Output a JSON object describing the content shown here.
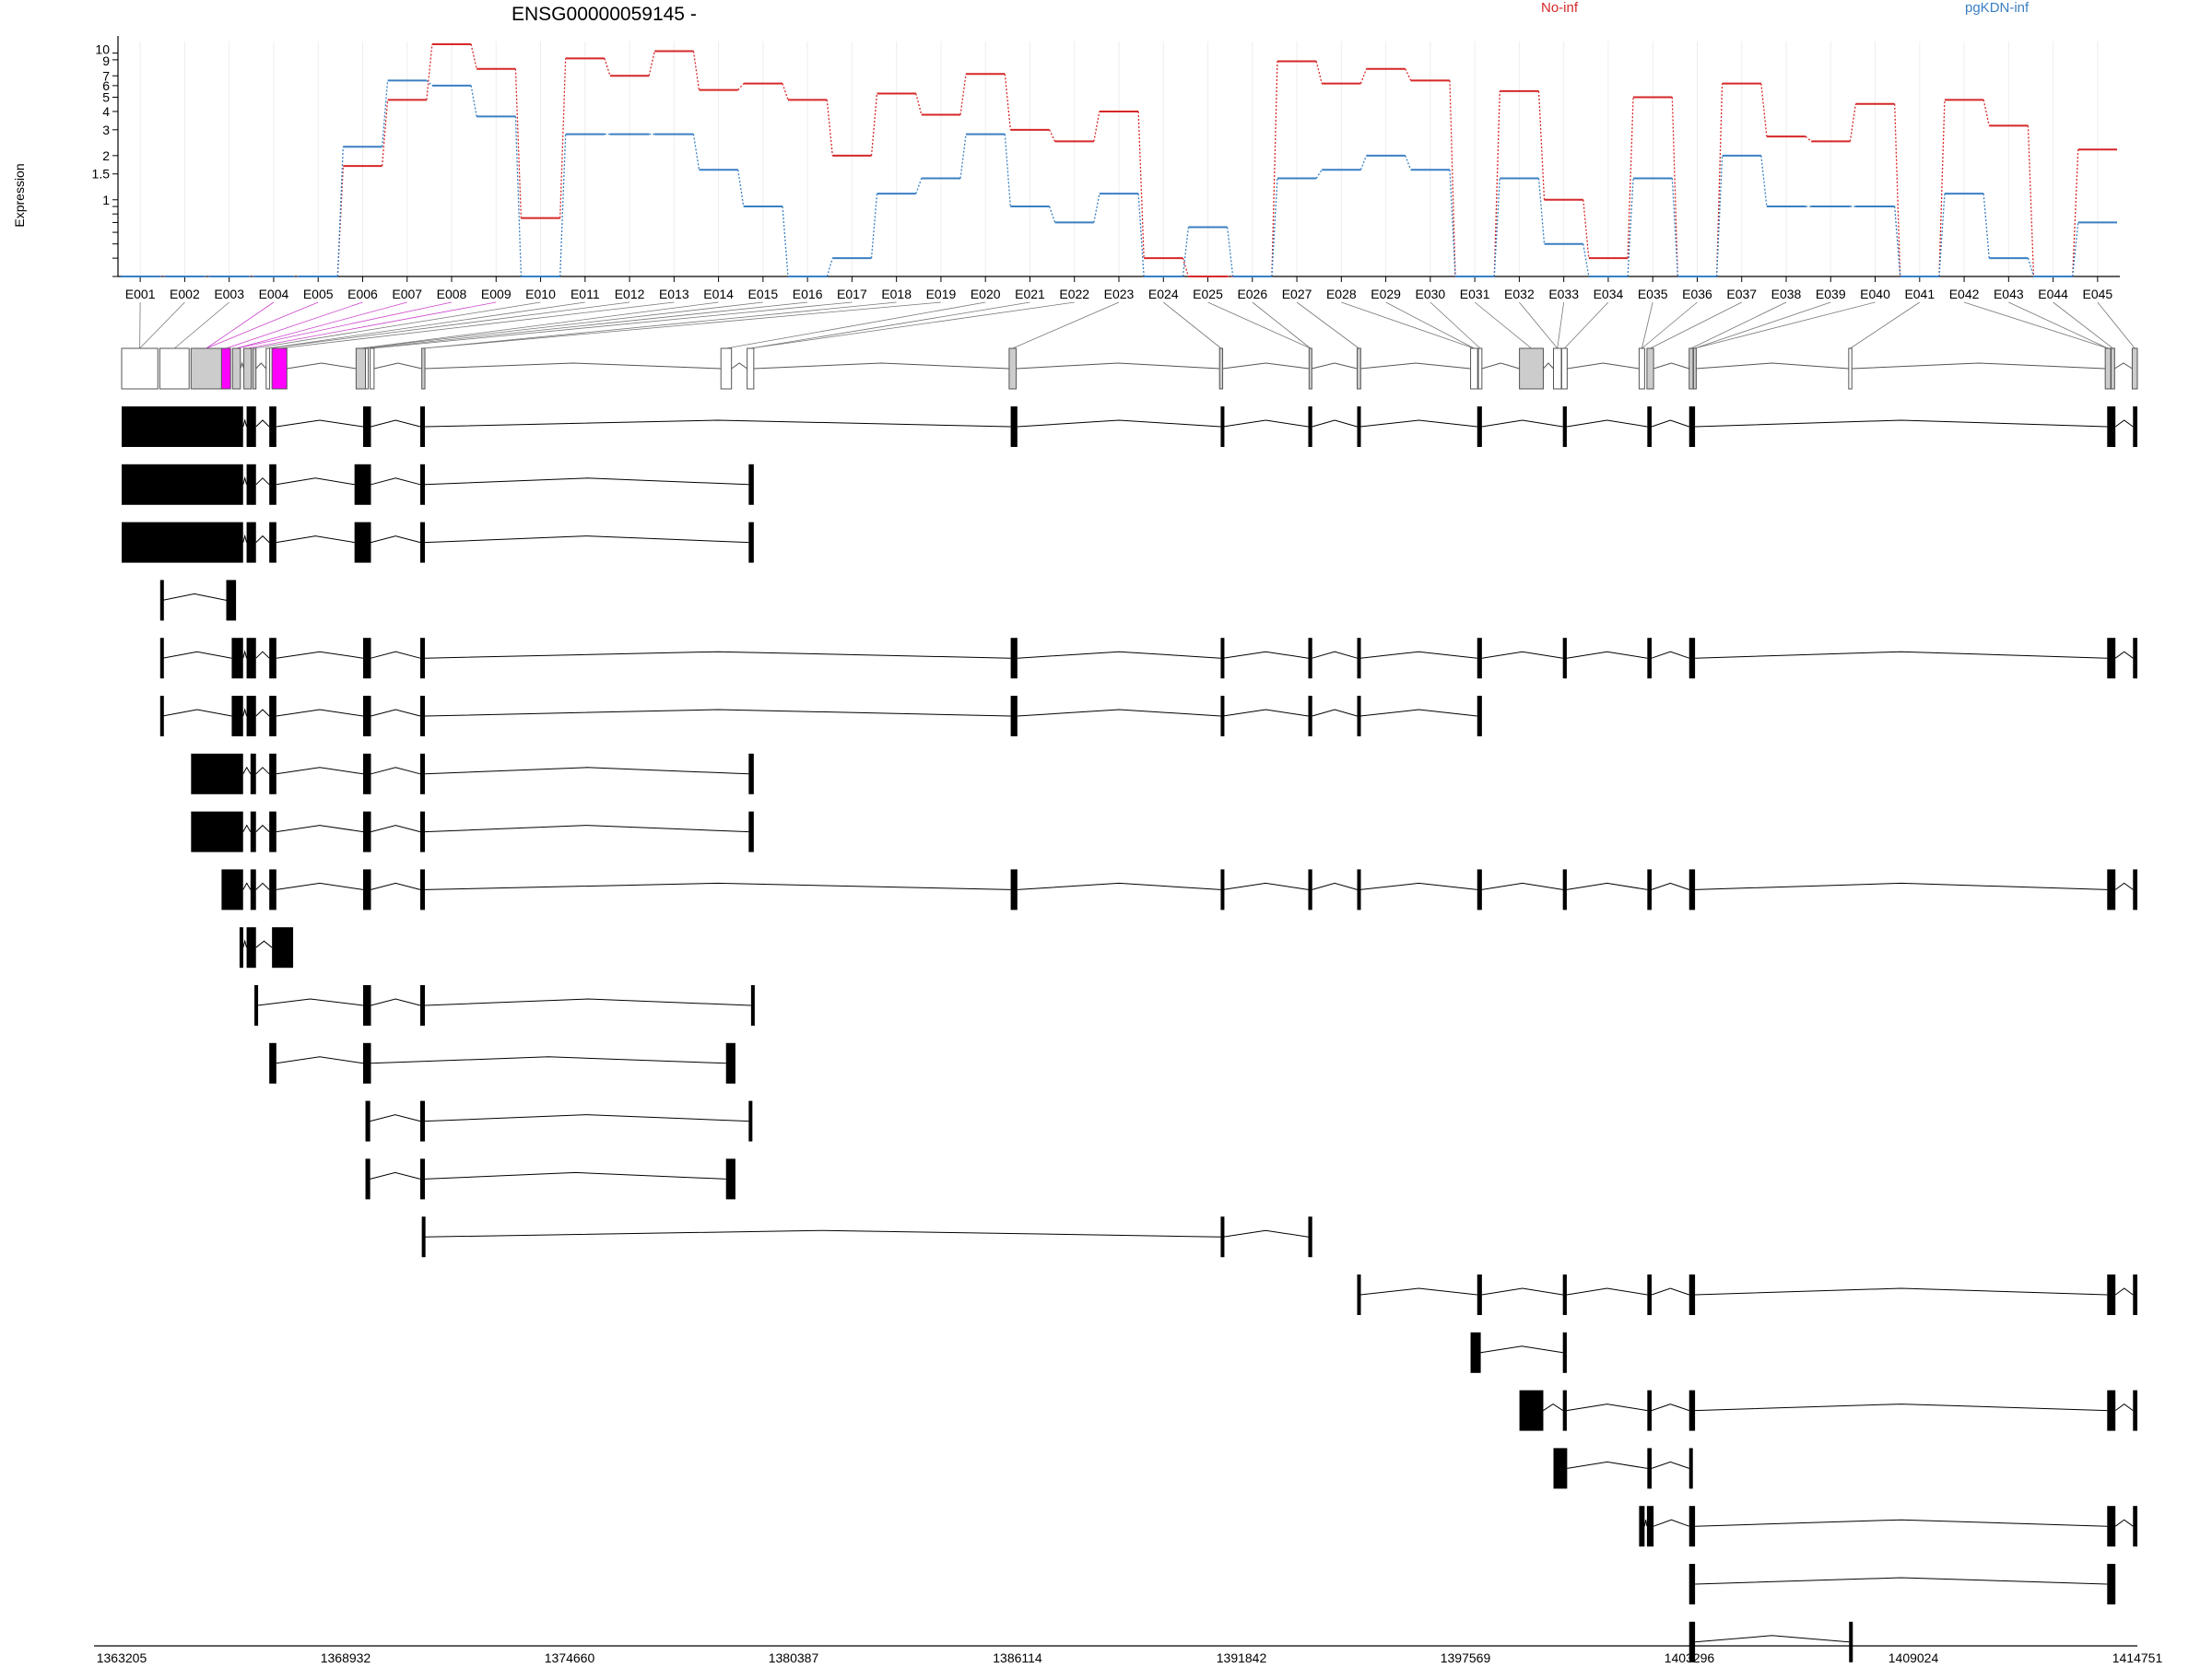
{
  "chart_data": {
    "type": "line",
    "title": "ENSG00000059145 -",
    "ylabel": "Expression",
    "xlabel": "",
    "y_scale": "log",
    "y_ticks": [
      "10",
      "9",
      "7",
      "6",
      "5",
      "4",
      "3",
      "2",
      "1.5",
      "1"
    ],
    "ylim": [
      0.3,
      12
    ],
    "categories": [
      "E001",
      "E002",
      "E003",
      "E004",
      "E005",
      "E006",
      "E007",
      "E008",
      "E009",
      "E010",
      "E011",
      "E012",
      "E013",
      "E014",
      "E015",
      "E016",
      "E017",
      "E018",
      "E019",
      "E020",
      "E021",
      "E022",
      "E023",
      "E024",
      "E025",
      "E026",
      "E027",
      "E028",
      "E029",
      "E030",
      "E031",
      "E032",
      "E033",
      "E034",
      "E035",
      "E036",
      "E037",
      "E038",
      "E039",
      "E040",
      "E041",
      "E042",
      "E043",
      "E044",
      "E045"
    ],
    "series": [
      {
        "name": "No-inf",
        "color": "#d62728",
        "values": [
          0.3,
          0.3,
          0.3,
          0.3,
          0.3,
          1.7,
          4.8,
          11.5,
          7.8,
          0.75,
          9.2,
          7.0,
          10.3,
          5.6,
          6.2,
          4.8,
          2.0,
          5.3,
          3.8,
          7.2,
          3.0,
          2.5,
          4.0,
          0.4,
          0.3,
          0.3,
          8.8,
          6.2,
          7.8,
          6.5,
          0.3,
          5.5,
          1.0,
          0.4,
          5.0,
          0.3,
          6.2,
          2.7,
          2.5,
          4.5,
          0.3,
          4.8,
          3.2,
          0.3,
          2.2
        ]
      },
      {
        "name": "pgKDN-inf",
        "color": "#3a7fc2",
        "values": [
          0.3,
          0.3,
          0.3,
          0.3,
          0.3,
          2.3,
          6.5,
          6.0,
          3.7,
          0.3,
          2.8,
          2.8,
          2.8,
          1.6,
          0.9,
          0.3,
          0.4,
          1.1,
          1.4,
          2.8,
          0.9,
          0.7,
          1.1,
          0.3,
          0.65,
          0.3,
          1.4,
          1.6,
          2.0,
          1.6,
          0.3,
          1.4,
          0.5,
          0.3,
          1.4,
          0.3,
          2.0,
          0.9,
          0.9,
          0.9,
          0.3,
          1.1,
          0.4,
          0.3,
          0.7
        ]
      }
    ],
    "legend": "top-right",
    "grid": "vertical"
  },
  "genome_axis": {
    "ticks": [
      1363205,
      1368932,
      1374660,
      1380387,
      1386114,
      1391842,
      1397569,
      1403296,
      1409024,
      1414751
    ],
    "range": [
      1363205,
      1414751
    ]
  },
  "exon_bins": [
    {
      "s": 1363205,
      "e": 1364130,
      "fill": "#ffffff"
    },
    {
      "s": 1364180,
      "e": 1364930,
      "fill": "#ffffff"
    },
    {
      "s": 1364980,
      "e": 1365760,
      "fill": "#cccccc"
    },
    {
      "s": 1365760,
      "e": 1365990,
      "fill": "#ff00ff"
    },
    {
      "s": 1366040,
      "e": 1366240,
      "fill": "#cccccc"
    },
    {
      "s": 1366330,
      "e": 1366520,
      "fill": "#cccccc"
    },
    {
      "s": 1366560,
      "e": 1366640,
      "fill": "#cccccc"
    },
    {
      "s": 1366900,
      "e": 1366990,
      "fill": "#ffffff"
    },
    {
      "s": 1367050,
      "e": 1367430,
      "fill": "#ff00ff"
    },
    {
      "s": 1369200,
      "e": 1369440,
      "fill": "#cccccc"
    },
    {
      "s": 1369440,
      "e": 1369500,
      "fill": "#ffffff"
    },
    {
      "s": 1369560,
      "e": 1369660,
      "fill": "#ffffff"
    },
    {
      "s": 1370880,
      "e": 1370960,
      "fill": "#cccccc"
    },
    {
      "s": 1378530,
      "e": 1378800,
      "fill": "#ffffff"
    },
    {
      "s": 1379200,
      "e": 1379370,
      "fill": "#ffffff"
    },
    {
      "s": 1385900,
      "e": 1386080,
      "fill": "#cccccc"
    },
    {
      "s": 1391280,
      "e": 1391360,
      "fill": "#cccccc"
    },
    {
      "s": 1393570,
      "e": 1393640,
      "fill": "#cccccc"
    },
    {
      "s": 1394800,
      "e": 1394890,
      "fill": "#cccccc"
    },
    {
      "s": 1397700,
      "e": 1397880,
      "fill": "#ffffff"
    },
    {
      "s": 1397900,
      "e": 1397990,
      "fill": "#ffffff"
    },
    {
      "s": 1398950,
      "e": 1399560,
      "fill": "#cccccc"
    },
    {
      "s": 1399820,
      "e": 1400020,
      "fill": "#ffffff"
    },
    {
      "s": 1400030,
      "e": 1400170,
      "fill": "#ffffff"
    },
    {
      "s": 1402010,
      "e": 1402150,
      "fill": "#ffffff"
    },
    {
      "s": 1402210,
      "e": 1402380,
      "fill": "#cccccc"
    },
    {
      "s": 1403290,
      "e": 1403390,
      "fill": "#cccccc"
    },
    {
      "s": 1403400,
      "e": 1403460,
      "fill": "#cccccc"
    },
    {
      "s": 1407370,
      "e": 1407450,
      "fill": "#ffffff"
    },
    {
      "s": 1413930,
      "e": 1414070,
      "fill": "#cccccc"
    },
    {
      "s": 1414080,
      "e": 1414170,
      "fill": "#cccccc"
    },
    {
      "s": 1414620,
      "e": 1414751,
      "fill": "#cccccc"
    }
  ],
  "transcripts": [
    [
      [
        1363205,
        1366310
      ],
      [
        1366400,
        1366640
      ],
      [
        1366980,
        1367160
      ],
      [
        1369380,
        1369580
      ],
      [
        1370840,
        1370960
      ],
      [
        1385940,
        1386110
      ],
      [
        1391310,
        1391370
      ],
      [
        1393550,
        1393650
      ],
      [
        1394800,
        1394880
      ],
      [
        1397870,
        1397990
      ],
      [
        1400060,
        1400160
      ],
      [
        1402220,
        1402330
      ],
      [
        1403290,
        1403440
      ],
      [
        1413980,
        1414190
      ],
      [
        1414640,
        1414751
      ]
    ],
    [
      [
        1363205,
        1366310
      ],
      [
        1366400,
        1366640
      ],
      [
        1366980,
        1367160
      ],
      [
        1369160,
        1369580
      ],
      [
        1370840,
        1370960
      ],
      [
        1379240,
        1379370
      ]
    ],
    [
      [
        1363205,
        1366310
      ],
      [
        1366400,
        1366640
      ],
      [
        1366980,
        1367160
      ],
      [
        1369160,
        1369580
      ],
      [
        1370840,
        1370960
      ],
      [
        1379240,
        1379370
      ]
    ],
    [
      [
        1364190,
        1364250
      ],
      [
        1365880,
        1366130
      ]
    ],
    [
      [
        1364190,
        1364250
      ],
      [
        1366020,
        1366310
      ],
      [
        1366400,
        1366640
      ],
      [
        1366980,
        1367160
      ],
      [
        1369380,
        1369580
      ],
      [
        1370840,
        1370960
      ],
      [
        1385940,
        1386110
      ],
      [
        1391310,
        1391370
      ],
      [
        1393550,
        1393650
      ],
      [
        1394800,
        1394880
      ],
      [
        1397870,
        1397990
      ],
      [
        1400060,
        1400160
      ],
      [
        1402220,
        1402330
      ],
      [
        1403290,
        1403440
      ],
      [
        1413980,
        1414190
      ],
      [
        1414640,
        1414751
      ]
    ],
    [
      [
        1364190,
        1364250
      ],
      [
        1366020,
        1366310
      ],
      [
        1366400,
        1366640
      ],
      [
        1366980,
        1367160
      ],
      [
        1369380,
        1369580
      ],
      [
        1370840,
        1370960
      ],
      [
        1385940,
        1386110
      ],
      [
        1391310,
        1391370
      ],
      [
        1393550,
        1393650
      ],
      [
        1394800,
        1394880
      ],
      [
        1397870,
        1397990
      ]
    ],
    [
      [
        1364980,
        1366310
      ],
      [
        1366500,
        1366640
      ],
      [
        1366980,
        1367160
      ],
      [
        1369380,
        1369580
      ],
      [
        1370840,
        1370960
      ],
      [
        1379240,
        1379370
      ]
    ],
    [
      [
        1364980,
        1366310
      ],
      [
        1366500,
        1366640
      ],
      [
        1366980,
        1367160
      ],
      [
        1369380,
        1369580
      ],
      [
        1370840,
        1370960
      ],
      [
        1379240,
        1379370
      ]
    ],
    [
      [
        1365760,
        1366310
      ],
      [
        1366500,
        1366640
      ],
      [
        1366980,
        1367160
      ],
      [
        1369380,
        1369580
      ],
      [
        1370840,
        1370960
      ],
      [
        1385940,
        1386110
      ],
      [
        1391310,
        1391370
      ],
      [
        1393550,
        1393650
      ],
      [
        1394800,
        1394880
      ],
      [
        1397870,
        1397990
      ],
      [
        1400060,
        1400160
      ],
      [
        1402220,
        1402330
      ],
      [
        1403290,
        1403440
      ],
      [
        1413980,
        1414190
      ],
      [
        1414640,
        1414751
      ]
    ],
    [
      [
        1366220,
        1366310
      ],
      [
        1366400,
        1366640
      ],
      [
        1367050,
        1367590
      ]
    ],
    [
      [
        1366600,
        1366680
      ],
      [
        1369380,
        1369580
      ],
      [
        1370840,
        1370960
      ],
      [
        1379300,
        1379370
      ]
    ],
    [
      [
        1366980,
        1367160
      ],
      [
        1369380,
        1369580
      ],
      [
        1378660,
        1378900
      ]
    ],
    [
      [
        1369440,
        1369560
      ],
      [
        1370840,
        1370960
      ],
      [
        1379240,
        1379320
      ]
    ],
    [
      [
        1369440,
        1369560
      ],
      [
        1370840,
        1370960
      ],
      [
        1378660,
        1378900
      ]
    ],
    [
      [
        1370880,
        1370960
      ],
      [
        1391310,
        1391370
      ],
      [
        1393550,
        1393650
      ]
    ],
    [
      [
        1394800,
        1394880
      ],
      [
        1397870,
        1397990
      ],
      [
        1400060,
        1400160
      ],
      [
        1402220,
        1402330
      ],
      [
        1403290,
        1403440
      ],
      [
        1413980,
        1414190
      ],
      [
        1414640,
        1414751
      ]
    ],
    [
      [
        1397700,
        1397960
      ],
      [
        1400060,
        1400160
      ]
    ],
    [
      [
        1398950,
        1399560
      ],
      [
        1400060,
        1400160
      ],
      [
        1402220,
        1402330
      ],
      [
        1403290,
        1403440
      ],
      [
        1413980,
        1414190
      ],
      [
        1414640,
        1414751
      ]
    ],
    [
      [
        1399820,
        1400170
      ],
      [
        1402220,
        1402330
      ],
      [
        1403290,
        1403340
      ]
    ],
    [
      [
        1402010,
        1402150
      ],
      [
        1402210,
        1402380
      ],
      [
        1403290,
        1403440
      ],
      [
        1413980,
        1414190
      ],
      [
        1414640,
        1414751
      ]
    ],
    [
      [
        1403290,
        1403440
      ],
      [
        1413980,
        1414190
      ]
    ],
    [
      [
        1403290,
        1403440
      ],
      [
        1407380,
        1407450
      ]
    ]
  ]
}
